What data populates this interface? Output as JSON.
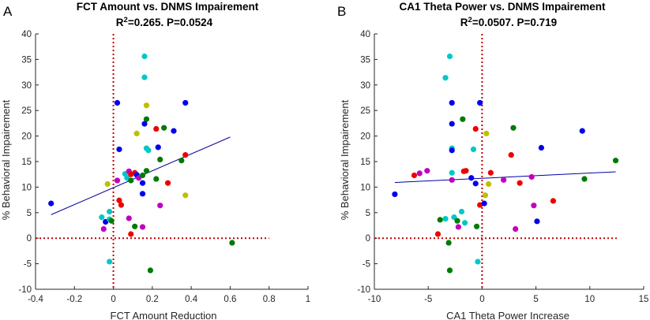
{
  "colors": {
    "point_palette": {
      "blue": "#0000ee",
      "green": "#007a00",
      "red": "#ee0000",
      "cyan": "#00c8c8",
      "magenta": "#c000c0",
      "olive": "#bfbf00"
    },
    "fit_line": "#0000a0",
    "reference_line": "#c00000",
    "axis": "#262626"
  },
  "panels": [
    {
      "letter": "A",
      "title_line1": "FCT Amount vs. DNMS Impairement",
      "stats_prefix": "R",
      "stats_superscript": "2",
      "stats_rest": "=0.265. P=0.0524"
    },
    {
      "letter": "B",
      "title_line1": "CA1 Theta Power vs. DNMS Impairement",
      "stats_prefix": "R",
      "stats_superscript": "2",
      "stats_rest": "=0.0507. P=0.719"
    }
  ],
  "chart_data": [
    {
      "type": "scatter",
      "title": "FCT Amount vs. DNMS Impairement R2=0.265. P=0.0524",
      "xlabel": "FCT Amount Reduction",
      "ylabel": "% Behavioral Impairement",
      "xlim": [
        -0.4,
        1
      ],
      "ylim": [
        -10,
        40
      ],
      "xticks": [
        -0.4,
        -0.2,
        0,
        0.2,
        0.4,
        0.6,
        0.8,
        1
      ],
      "xtick_labels": [
        "-0.4",
        "-0.2",
        "0",
        "0.2",
        "0.4",
        "0.6",
        "0.8",
        "1"
      ],
      "yticks": [
        -10,
        -5,
        0,
        5,
        10,
        15,
        20,
        25,
        30,
        35,
        40
      ],
      "ytick_labels": [
        "-10",
        "-5",
        "0",
        "5",
        "10",
        "15",
        "20",
        "25",
        "30",
        "35",
        "40"
      ],
      "grid": false,
      "fit_line": {
        "x": [
          -0.32,
          0.6
        ],
        "y": [
          4.6,
          19.8
        ]
      },
      "reference_lines": {
        "x": 0,
        "y": 0,
        "x_range": [
          -0.4,
          0.8
        ]
      },
      "points": [
        {
          "x": -0.32,
          "y": 6.8,
          "color": "blue"
        },
        {
          "x": -0.06,
          "y": 4.1,
          "color": "cyan"
        },
        {
          "x": -0.05,
          "y": 1.8,
          "color": "magenta"
        },
        {
          "x": -0.04,
          "y": 3.2,
          "color": "blue"
        },
        {
          "x": -0.03,
          "y": 10.6,
          "color": "olive"
        },
        {
          "x": -0.02,
          "y": 3.7,
          "color": "cyan"
        },
        {
          "x": -0.02,
          "y": 5.2,
          "color": "cyan"
        },
        {
          "x": -0.01,
          "y": 3.4,
          "color": "green"
        },
        {
          "x": -0.02,
          "y": -4.6,
          "color": "cyan"
        },
        {
          "x": 0.02,
          "y": 26.5,
          "color": "blue"
        },
        {
          "x": 0.03,
          "y": 17.4,
          "color": "blue"
        },
        {
          "x": 0.02,
          "y": 11.3,
          "color": "magenta"
        },
        {
          "x": 0.03,
          "y": 7.4,
          "color": "red"
        },
        {
          "x": 0.04,
          "y": 6.5,
          "color": "red"
        },
        {
          "x": 0.06,
          "y": 12.6,
          "color": "cyan"
        },
        {
          "x": 0.07,
          "y": 11.8,
          "color": "cyan"
        },
        {
          "x": 0.08,
          "y": 13.1,
          "color": "magenta"
        },
        {
          "x": 0.09,
          "y": 12.5,
          "color": "red"
        },
        {
          "x": 0.09,
          "y": 11.3,
          "color": "green"
        },
        {
          "x": 0.08,
          "y": 3.9,
          "color": "magenta"
        },
        {
          "x": 0.09,
          "y": 0.8,
          "color": "red"
        },
        {
          "x": 0.11,
          "y": 12.8,
          "color": "red"
        },
        {
          "x": 0.12,
          "y": 12.4,
          "color": "blue"
        },
        {
          "x": 0.13,
          "y": 11.8,
          "color": "magenta"
        },
        {
          "x": 0.12,
          "y": 20.5,
          "color": "olive"
        },
        {
          "x": 0.11,
          "y": 2.3,
          "color": "green"
        },
        {
          "x": 0.16,
          "y": 35.6,
          "color": "cyan"
        },
        {
          "x": 0.16,
          "y": 31.5,
          "color": "cyan"
        },
        {
          "x": 0.17,
          "y": 26.0,
          "color": "olive"
        },
        {
          "x": 0.17,
          "y": 23.3,
          "color": "green"
        },
        {
          "x": 0.16,
          "y": 22.4,
          "color": "blue"
        },
        {
          "x": 0.17,
          "y": 17.6,
          "color": "cyan"
        },
        {
          "x": 0.18,
          "y": 17.2,
          "color": "cyan"
        },
        {
          "x": 0.17,
          "y": 13.2,
          "color": "green"
        },
        {
          "x": 0.15,
          "y": 12.3,
          "color": "green"
        },
        {
          "x": 0.15,
          "y": 10.8,
          "color": "blue"
        },
        {
          "x": 0.15,
          "y": 8.7,
          "color": "blue"
        },
        {
          "x": 0.15,
          "y": 2.2,
          "color": "magenta"
        },
        {
          "x": 0.19,
          "y": -6.3,
          "color": "green"
        },
        {
          "x": 0.22,
          "y": 21.4,
          "color": "red"
        },
        {
          "x": 0.22,
          "y": 11.6,
          "color": "green"
        },
        {
          "x": 0.23,
          "y": 17.8,
          "color": "blue"
        },
        {
          "x": 0.24,
          "y": 15.4,
          "color": "green"
        },
        {
          "x": 0.26,
          "y": 21.6,
          "color": "green"
        },
        {
          "x": 0.24,
          "y": 6.4,
          "color": "magenta"
        },
        {
          "x": 0.28,
          "y": 10.8,
          "color": "red"
        },
        {
          "x": 0.31,
          "y": 21.0,
          "color": "blue"
        },
        {
          "x": 0.35,
          "y": 15.2,
          "color": "green"
        },
        {
          "x": 0.37,
          "y": 26.5,
          "color": "blue"
        },
        {
          "x": 0.37,
          "y": 16.3,
          "color": "red"
        },
        {
          "x": 0.37,
          "y": 8.4,
          "color": "olive"
        },
        {
          "x": 0.61,
          "y": -0.9,
          "color": "green"
        }
      ]
    },
    {
      "type": "scatter",
      "title": "CA1 Theta Power vs. DNMS Impairement R2=0.0507. P=0.719",
      "xlabel": "CA1 Theta Power Increase",
      "ylabel": "% Behavioral Impairement",
      "xlim": [
        -10,
        15
      ],
      "ylim": [
        -10,
        40
      ],
      "xticks": [
        -10,
        -5,
        0,
        5,
        10,
        15
      ],
      "xtick_labels": [
        "-10",
        "-5",
        "0",
        "5",
        "10",
        "15"
      ],
      "yticks": [
        -10,
        -5,
        0,
        5,
        10,
        15,
        20,
        25,
        30,
        35,
        40
      ],
      "ytick_labels": [
        "-10",
        "-5",
        "0",
        "5",
        "10",
        "15",
        "20",
        "25",
        "30",
        "35",
        "40"
      ],
      "grid": false,
      "fit_line": {
        "x": [
          -8.1,
          12.4
        ],
        "y": [
          10.9,
          13.0
        ]
      },
      "reference_lines": {
        "x": 0,
        "y": 0,
        "x_range": [
          -10,
          12.5
        ]
      },
      "points": [
        {
          "x": -8.1,
          "y": 8.6,
          "color": "blue"
        },
        {
          "x": -6.3,
          "y": 12.3,
          "color": "red"
        },
        {
          "x": -5.8,
          "y": 12.7,
          "color": "magenta"
        },
        {
          "x": -5.1,
          "y": 13.2,
          "color": "magenta"
        },
        {
          "x": -4.1,
          "y": 0.8,
          "color": "red"
        },
        {
          "x": -3.9,
          "y": 3.6,
          "color": "green"
        },
        {
          "x": -3.4,
          "y": 31.4,
          "color": "cyan"
        },
        {
          "x": -3.4,
          "y": 3.8,
          "color": "cyan"
        },
        {
          "x": -3.1,
          "y": -0.9,
          "color": "green"
        },
        {
          "x": -3.0,
          "y": 35.6,
          "color": "cyan"
        },
        {
          "x": -2.8,
          "y": 26.5,
          "color": "blue"
        },
        {
          "x": -2.8,
          "y": 22.4,
          "color": "blue"
        },
        {
          "x": -2.8,
          "y": 17.6,
          "color": "cyan"
        },
        {
          "x": -2.8,
          "y": 17.2,
          "color": "blue"
        },
        {
          "x": -2.8,
          "y": 12.8,
          "color": "cyan"
        },
        {
          "x": -2.8,
          "y": 11.4,
          "color": "magenta"
        },
        {
          "x": -3.0,
          "y": -6.3,
          "color": "green"
        },
        {
          "x": -2.6,
          "y": 4.1,
          "color": "cyan"
        },
        {
          "x": -2.3,
          "y": 3.4,
          "color": "green"
        },
        {
          "x": -2.2,
          "y": 2.2,
          "color": "magenta"
        },
        {
          "x": -1.8,
          "y": 23.3,
          "color": "green"
        },
        {
          "x": -1.7,
          "y": 13.1,
          "color": "red"
        },
        {
          "x": -1.5,
          "y": 13.2,
          "color": "red"
        },
        {
          "x": -1.9,
          "y": 5.2,
          "color": "cyan"
        },
        {
          "x": -1.6,
          "y": 3.0,
          "color": "cyan"
        },
        {
          "x": -1.0,
          "y": 11.8,
          "color": "blue"
        },
        {
          "x": -0.8,
          "y": 17.4,
          "color": "cyan"
        },
        {
          "x": -0.6,
          "y": 21.4,
          "color": "red"
        },
        {
          "x": -0.6,
          "y": 10.7,
          "color": "blue"
        },
        {
          "x": -0.5,
          "y": 2.3,
          "color": "green"
        },
        {
          "x": -0.4,
          "y": -4.6,
          "color": "cyan"
        },
        {
          "x": -0.2,
          "y": 26.5,
          "color": "blue"
        },
        {
          "x": -0.2,
          "y": 6.5,
          "color": "red"
        },
        {
          "x": 0.2,
          "y": 6.8,
          "color": "blue"
        },
        {
          "x": 0.4,
          "y": 20.5,
          "color": "olive"
        },
        {
          "x": 0.3,
          "y": 8.4,
          "color": "olive"
        },
        {
          "x": 0.6,
          "y": 10.6,
          "color": "olive"
        },
        {
          "x": 0.8,
          "y": 12.8,
          "color": "red"
        },
        {
          "x": 2.0,
          "y": 11.4,
          "color": "magenta"
        },
        {
          "x": 2.7,
          "y": 16.3,
          "color": "red"
        },
        {
          "x": 2.9,
          "y": 21.6,
          "color": "green"
        },
        {
          "x": 3.1,
          "y": 1.8,
          "color": "magenta"
        },
        {
          "x": 3.5,
          "y": 10.8,
          "color": "red"
        },
        {
          "x": 4.6,
          "y": 12.0,
          "color": "magenta"
        },
        {
          "x": 4.8,
          "y": 6.4,
          "color": "magenta"
        },
        {
          "x": 5.1,
          "y": 3.3,
          "color": "blue"
        },
        {
          "x": 5.5,
          "y": 17.7,
          "color": "blue"
        },
        {
          "x": 6.6,
          "y": 7.3,
          "color": "red"
        },
        {
          "x": 9.3,
          "y": 21.0,
          "color": "blue"
        },
        {
          "x": 9.5,
          "y": 11.6,
          "color": "green"
        },
        {
          "x": 12.4,
          "y": 15.2,
          "color": "green"
        }
      ]
    }
  ]
}
